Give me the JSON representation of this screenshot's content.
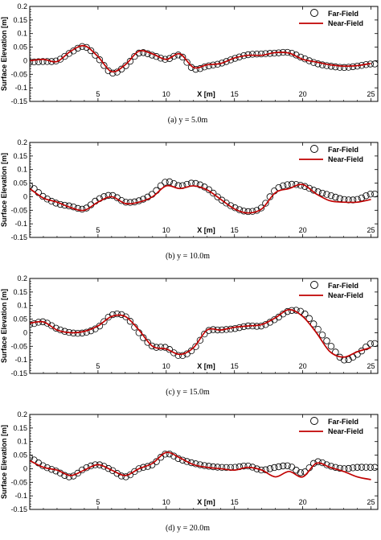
{
  "chart_data": [
    {
      "type": "line",
      "caption": "(a)  y = 5.0m",
      "xlabel": "X [m]",
      "ylabel": "Surface Elevation [m]",
      "xlim": [
        0,
        25.5
      ],
      "ylim": [
        -0.15,
        0.2
      ],
      "xticks": [
        "5",
        "10",
        "15",
        "20",
        "25"
      ],
      "yticks": [
        "0.2",
        "0.15",
        "0.1",
        "0.05",
        "0",
        "-0.05",
        "-0.1",
        "-0.15"
      ],
      "legend": "top-right",
      "series": [
        {
          "name": "Far-Field",
          "marker": "circle",
          "color": "#000000",
          "x": [
            0,
            1,
            2,
            3,
            4,
            5,
            6,
            7,
            8,
            9,
            10,
            11,
            12,
            13,
            14,
            15,
            16,
            17,
            18,
            19,
            20,
            21,
            22,
            23,
            24,
            25
          ],
          "y": [
            -0.005,
            -0.003,
            0.0,
            0.03,
            0.052,
            0.01,
            -0.045,
            -0.02,
            0.028,
            0.02,
            0.005,
            0.02,
            -0.03,
            -0.02,
            -0.01,
            0.008,
            0.022,
            0.025,
            0.028,
            0.03,
            0.01,
            -0.01,
            -0.02,
            -0.025,
            -0.02,
            -0.012
          ]
        },
        {
          "name": "Near-Field",
          "marker": "none",
          "color": "#c00000",
          "x": [
            0,
            1,
            2,
            3,
            4,
            5,
            6,
            7,
            8,
            9,
            10,
            11,
            12,
            13,
            14,
            15,
            16,
            17,
            18,
            19,
            20,
            21,
            22,
            23,
            24,
            25
          ],
          "y": [
            0.0,
            0.005,
            -0.003,
            0.035,
            0.055,
            0.015,
            -0.04,
            -0.015,
            0.035,
            0.025,
            0.005,
            0.025,
            -0.025,
            -0.015,
            -0.01,
            0.01,
            0.02,
            0.02,
            0.03,
            0.028,
            0.005,
            -0.005,
            -0.015,
            -0.02,
            -0.018,
            -0.01
          ]
        }
      ]
    },
    {
      "type": "line",
      "caption": "(b)  y = 10.0m",
      "xlabel": "X [m]",
      "ylabel": "Surface Elevation [m]",
      "xlim": [
        0,
        25.5
      ],
      "ylim": [
        -0.15,
        0.2
      ],
      "xticks": [
        "5",
        "10",
        "15",
        "20",
        "25"
      ],
      "yticks": [
        "0.2",
        "0.15",
        "0.1",
        "0.05",
        "0",
        "-0.05",
        "-0.1",
        "-0.15"
      ],
      "legend": "top-right",
      "series": [
        {
          "name": "Far-Field",
          "marker": "circle",
          "color": "#000000",
          "x": [
            0,
            1,
            2,
            3,
            4,
            5,
            6,
            7,
            8,
            9,
            10,
            11,
            12,
            13,
            14,
            15,
            16,
            17,
            18,
            19,
            20,
            21,
            22,
            23,
            24,
            25
          ],
          "y": [
            0.04,
            0.0,
            -0.025,
            -0.035,
            -0.045,
            -0.01,
            0.005,
            -0.02,
            -0.015,
            0.01,
            0.055,
            0.04,
            0.05,
            0.03,
            -0.01,
            -0.04,
            -0.055,
            -0.04,
            0.025,
            0.045,
            0.04,
            0.02,
            0.005,
            -0.01,
            -0.01,
            0.01
          ]
        },
        {
          "name": "Near-Field",
          "marker": "none",
          "color": "#c00000",
          "x": [
            0,
            1,
            2,
            3,
            4,
            5,
            6,
            7,
            8,
            9,
            10,
            11,
            12,
            13,
            14,
            15,
            16,
            17,
            18,
            19,
            20,
            21,
            22,
            23,
            24,
            25
          ],
          "y": [
            0.03,
            -0.005,
            -0.02,
            -0.04,
            -0.05,
            -0.02,
            0.0,
            -0.025,
            -0.02,
            0.0,
            0.04,
            0.03,
            0.04,
            0.025,
            -0.01,
            -0.045,
            -0.06,
            -0.045,
            0.015,
            0.03,
            0.045,
            0.01,
            -0.015,
            -0.02,
            -0.02,
            -0.01
          ]
        }
      ]
    },
    {
      "type": "line",
      "caption": "(c)  y = 15.0m",
      "xlabel": "X [m]",
      "ylabel": "Surface Elevation [m]",
      "xlim": [
        0,
        25.5
      ],
      "ylim": [
        -0.15,
        0.2
      ],
      "xticks": [
        "5",
        "10",
        "15",
        "20",
        "25"
      ],
      "yticks": [
        "0.2",
        "0.15",
        "0.1",
        "0.05",
        "0",
        "-0.05",
        "-0.1",
        "-0.15"
      ],
      "legend": "top-right",
      "series": [
        {
          "name": "Far-Field",
          "marker": "circle",
          "color": "#000000",
          "x": [
            0,
            1,
            2,
            3,
            4,
            5,
            6,
            7,
            8,
            9,
            10,
            11,
            12,
            13,
            14,
            15,
            16,
            17,
            18,
            19,
            20,
            21,
            22,
            23,
            24,
            25
          ],
          "y": [
            0.03,
            0.04,
            0.015,
            0.0,
            0.0,
            0.02,
            0.065,
            0.06,
            0.0,
            -0.05,
            -0.055,
            -0.085,
            -0.06,
            0.005,
            0.01,
            0.015,
            0.025,
            0.025,
            0.05,
            0.08,
            0.075,
            0.02,
            -0.045,
            -0.1,
            -0.08,
            -0.04
          ]
        },
        {
          "name": "Near-Field",
          "marker": "none",
          "color": "#c00000",
          "x": [
            0,
            1,
            2,
            3,
            4,
            5,
            6,
            7,
            8,
            9,
            10,
            11,
            12,
            13,
            14,
            15,
            16,
            17,
            18,
            19,
            20,
            21,
            22,
            23,
            24,
            25
          ],
          "y": [
            0.035,
            0.04,
            0.01,
            0.0,
            0.005,
            0.025,
            0.06,
            0.06,
            0.01,
            -0.05,
            -0.06,
            -0.08,
            -0.055,
            0.01,
            0.01,
            0.02,
            0.025,
            0.03,
            0.055,
            0.085,
            0.06,
            0.0,
            -0.07,
            -0.09,
            -0.07,
            -0.055
          ]
        }
      ]
    },
    {
      "type": "line",
      "caption": "(d)  y = 20.0m",
      "xlabel": "X [m]",
      "ylabel": "Surface Elevation [m]",
      "xlim": [
        0,
        25.5
      ],
      "ylim": [
        -0.15,
        0.2
      ],
      "xticks": [
        "5",
        "10",
        "15",
        "20",
        "25"
      ],
      "yticks": [
        "0.2",
        "0.15",
        "0.1",
        "0.05",
        "0",
        "-0.05",
        "-0.1",
        "-0.15"
      ],
      "legend": "top-right",
      "series": [
        {
          "name": "Far-Field",
          "marker": "circle",
          "color": "#000000",
          "x": [
            0,
            1,
            2,
            3,
            4,
            5,
            6,
            7,
            8,
            9,
            10,
            11,
            12,
            13,
            14,
            15,
            16,
            17,
            18,
            19,
            20,
            21,
            22,
            23,
            24,
            25
          ],
          "y": [
            0.04,
            0.01,
            -0.01,
            -0.03,
            0.0,
            0.015,
            -0.005,
            -0.03,
            0.0,
            0.015,
            0.055,
            0.035,
            0.02,
            0.01,
            0.005,
            0.005,
            0.01,
            -0.005,
            0.005,
            0.01,
            -0.015,
            0.025,
            0.01,
            0.0,
            0.005,
            0.005
          ]
        },
        {
          "name": "Near-Field",
          "marker": "none",
          "color": "#c00000",
          "x": [
            0,
            1,
            2,
            3,
            4,
            5,
            6,
            7,
            8,
            9,
            10,
            11,
            12,
            13,
            14,
            15,
            16,
            17,
            18,
            19,
            20,
            21,
            22,
            23,
            24,
            25
          ],
          "y": [
            0.03,
            0.005,
            -0.005,
            -0.025,
            -0.005,
            0.015,
            -0.005,
            -0.025,
            0.0,
            0.02,
            0.06,
            0.04,
            0.015,
            0.005,
            0.0,
            -0.005,
            0.005,
            -0.005,
            -0.03,
            -0.01,
            -0.03,
            0.02,
            0.005,
            -0.01,
            -0.03,
            -0.04
          ]
        }
      ]
    }
  ]
}
